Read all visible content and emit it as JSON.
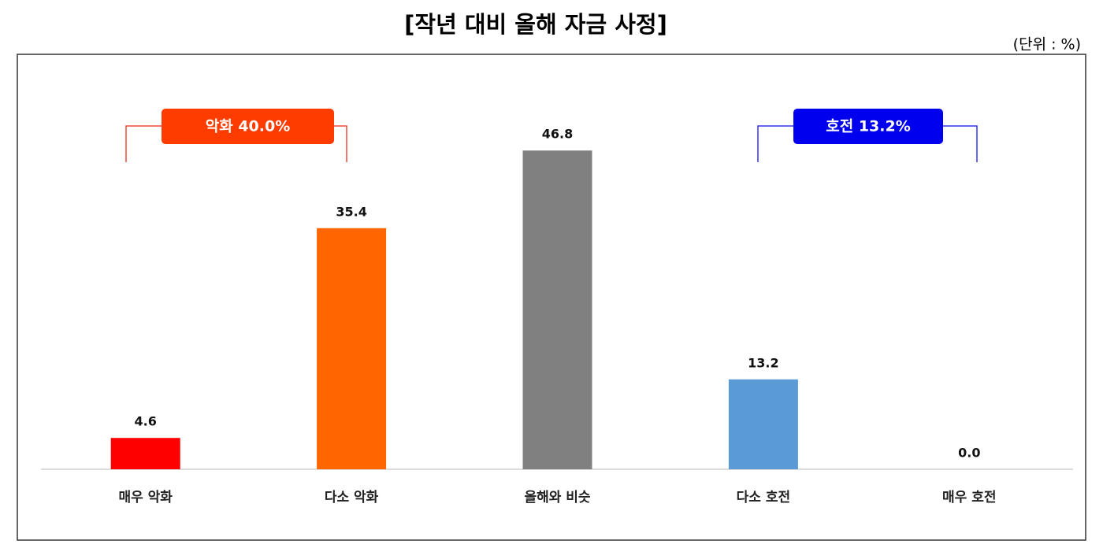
{
  "chart_data": {
    "type": "bar",
    "title": "[작년 대비 올해 자금 사정]",
    "unit_label": "(단위 : %)",
    "categories": [
      "매우 악화",
      "다소 악화",
      "올해와 비슷",
      "다소 호전",
      "매우 호전"
    ],
    "values": [
      4.6,
      35.4,
      46.8,
      13.2,
      0.0
    ],
    "value_labels": [
      "4.6",
      "35.4",
      "46.8",
      "13.2",
      "0.0"
    ],
    "colors": [
      "#ff0000",
      "#ff6600",
      "#808080",
      "#5b9bd5",
      "#2f5fbf"
    ],
    "ylim": [
      0,
      60
    ],
    "annotations": [
      "악화 40.0%",
      "호전 13.2%"
    ]
  }
}
